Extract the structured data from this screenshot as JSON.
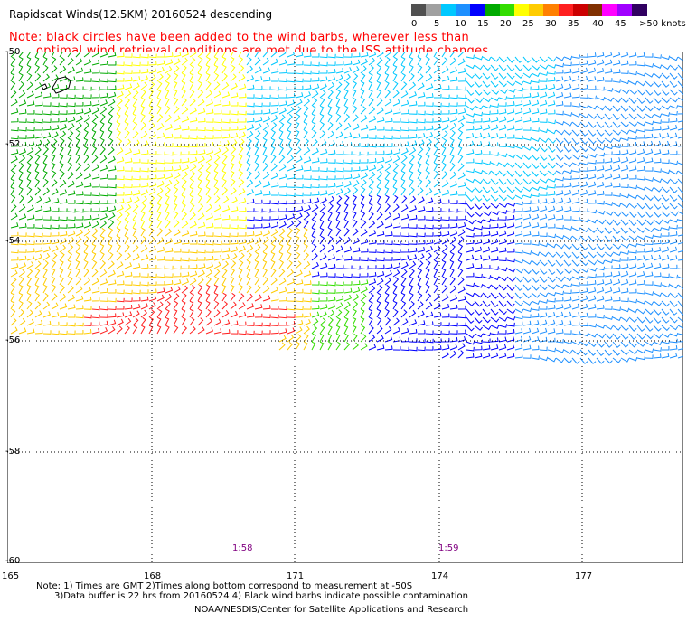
{
  "title": "Rapidscat Winds(12.5KM) 20160524 descending",
  "note_line1": "Note: black circles have been added to the wind barbs, wherever less than",
  "note_line2": "optimal wind retrieval conditions are met due to the ISS attitude changes.",
  "legend": {
    "labels": [
      "0",
      "5",
      "10",
      "15",
      "20",
      "25",
      "30",
      "35",
      "40",
      "45",
      ">50 knots"
    ],
    "colors": [
      "#505050",
      "#a0a0a0",
      "#00c8ff",
      "#1e90ff",
      "#0000ff",
      "#00aa00",
      "#33dd00",
      "#ffff00",
      "#ffcc00",
      "#ff8000",
      "#ff2020",
      "#cc0000",
      "#803000",
      "#ff00ff",
      "#a000ff",
      "#300060"
    ]
  },
  "lat_labels": [
    "-50",
    "-52",
    "-54",
    "-56",
    "-58",
    "-60"
  ],
  "lon_labels": [
    "165",
    "168",
    "171",
    "174",
    "177"
  ],
  "time_labels": [
    "1:58",
    "1:59"
  ],
  "footer": {
    "line1": "Note: 1) Times are GMT 2)Times along bottom correspond to measurement at -50S",
    "line2": "3)Data buffer is 22 hrs from 20160524 4) Black wind barbs indicate possible contamination",
    "line3": "NOAA/NESDIS/Center for Satellite Applications and Research"
  }
}
